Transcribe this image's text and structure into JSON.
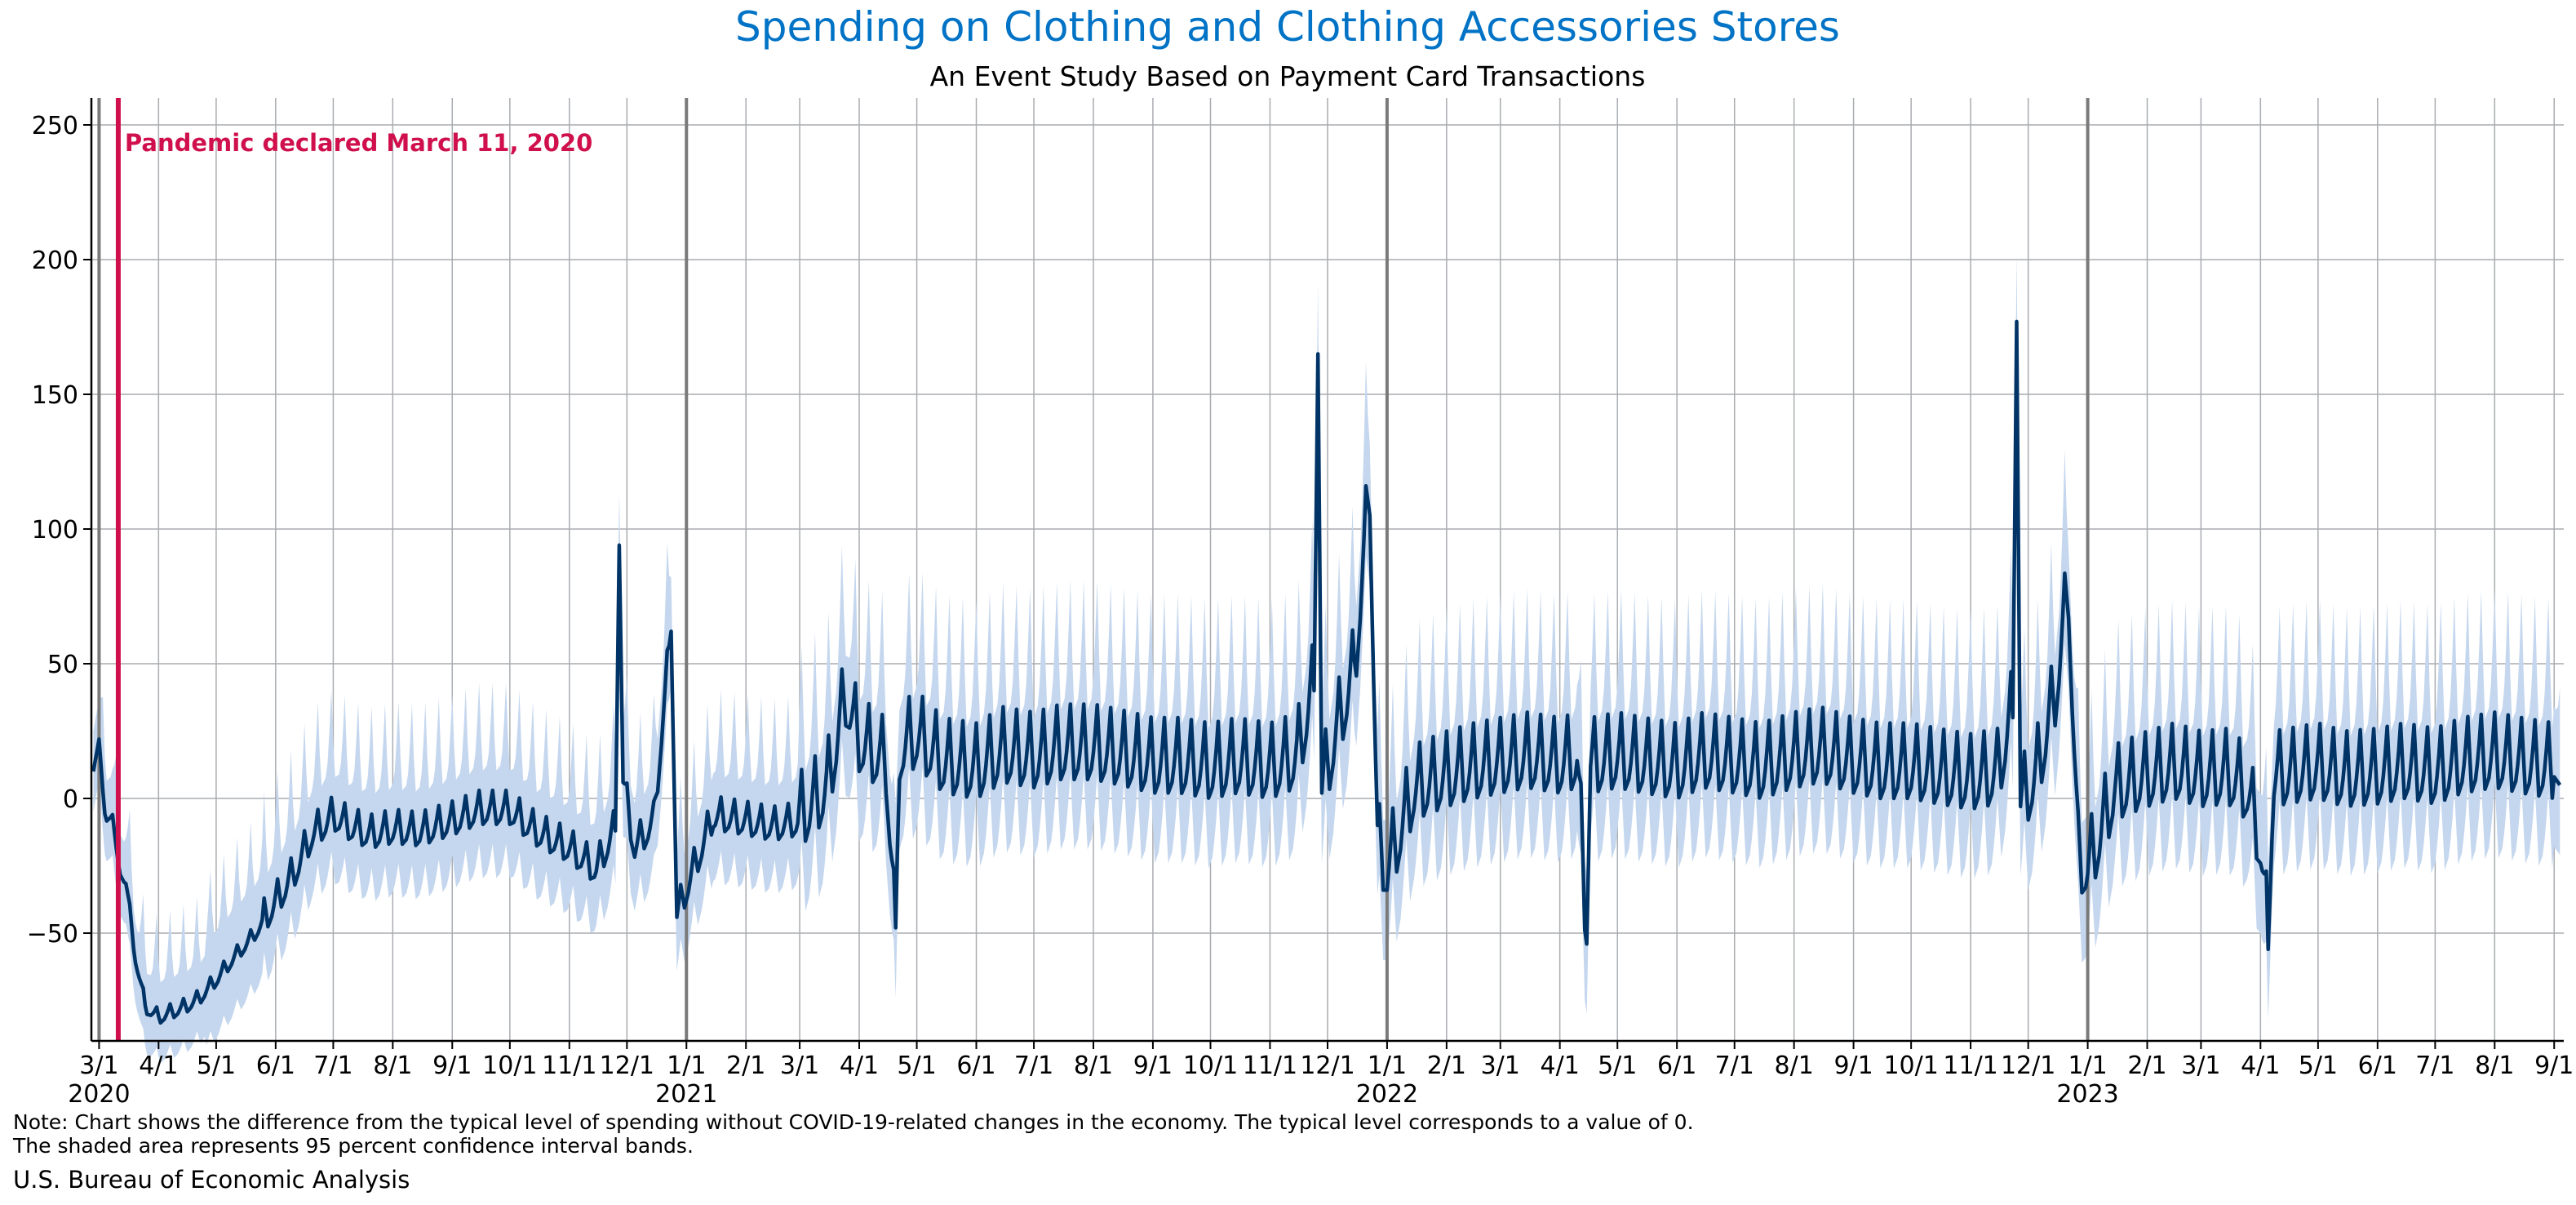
{
  "chart_data": {
    "type": "line",
    "title": "Spending on Clothing and Clothing Accessories Stores",
    "subtitle": "An Event Study Based on Payment Card Transactions",
    "xlabel": "",
    "ylabel": "",
    "ylim": [
      -90,
      260
    ],
    "yticks": [
      -50,
      0,
      50,
      100,
      150,
      200,
      250
    ],
    "xlim": [
      "2020-02-26",
      "2023-09-06"
    ],
    "grid": true,
    "colors": {
      "line": "#003366",
      "band": "#c5d7ee",
      "event": "#d0104c",
      "title": "#0073c6",
      "grid": "#a9acb0",
      "year": "#7a7a7a"
    },
    "event": {
      "date": "2020-03-11",
      "label": "Pandemic declared March 11, 2020"
    },
    "xticks": [
      {
        "date": "2020-03-01",
        "label": "3/1",
        "year": "2020"
      },
      {
        "date": "2020-04-01",
        "label": "4/1"
      },
      {
        "date": "2020-05-01",
        "label": "5/1"
      },
      {
        "date": "2020-06-01",
        "label": "6/1"
      },
      {
        "date": "2020-07-01",
        "label": "7/1"
      },
      {
        "date": "2020-08-01",
        "label": "8/1"
      },
      {
        "date": "2020-09-01",
        "label": "9/1"
      },
      {
        "date": "2020-10-01",
        "label": "10/1"
      },
      {
        "date": "2020-11-01",
        "label": "11/1"
      },
      {
        "date": "2020-12-01",
        "label": "12/1"
      },
      {
        "date": "2021-01-01",
        "label": "1/1",
        "year": "2021"
      },
      {
        "date": "2021-02-01",
        "label": "2/1"
      },
      {
        "date": "2021-03-01",
        "label": "3/1"
      },
      {
        "date": "2021-04-01",
        "label": "4/1"
      },
      {
        "date": "2021-05-01",
        "label": "5/1"
      },
      {
        "date": "2021-06-01",
        "label": "6/1"
      },
      {
        "date": "2021-07-01",
        "label": "7/1"
      },
      {
        "date": "2021-08-01",
        "label": "8/1"
      },
      {
        "date": "2021-09-01",
        "label": "9/1"
      },
      {
        "date": "2021-10-01",
        "label": "10/1"
      },
      {
        "date": "2021-11-01",
        "label": "11/1"
      },
      {
        "date": "2021-12-01",
        "label": "12/1"
      },
      {
        "date": "2022-01-01",
        "label": "1/1",
        "year": "2022"
      },
      {
        "date": "2022-02-01",
        "label": "2/1"
      },
      {
        "date": "2022-03-01",
        "label": "3/1"
      },
      {
        "date": "2022-04-01",
        "label": "4/1"
      },
      {
        "date": "2022-05-01",
        "label": "5/1"
      },
      {
        "date": "2022-06-01",
        "label": "6/1"
      },
      {
        "date": "2022-07-01",
        "label": "7/1"
      },
      {
        "date": "2022-08-01",
        "label": "8/1"
      },
      {
        "date": "2022-09-01",
        "label": "9/1"
      },
      {
        "date": "2022-10-01",
        "label": "10/1"
      },
      {
        "date": "2022-11-01",
        "label": "11/1"
      },
      {
        "date": "2022-12-01",
        "label": "12/1"
      },
      {
        "date": "2023-01-01",
        "label": "1/1",
        "year": "2023"
      },
      {
        "date": "2023-02-01",
        "label": "2/1"
      },
      {
        "date": "2023-03-01",
        "label": "3/1"
      },
      {
        "date": "2023-04-01",
        "label": "4/1"
      },
      {
        "date": "2023-05-01",
        "label": "5/1"
      },
      {
        "date": "2023-06-01",
        "label": "6/1"
      },
      {
        "date": "2023-07-01",
        "label": "7/1"
      },
      {
        "date": "2023-08-01",
        "label": "8/1"
      },
      {
        "date": "2023-09-01",
        "label": "9/1"
      }
    ],
    "series": [
      {
        "points": [
          [
            "2020-02-27",
            10
          ],
          [
            "2020-03-01",
            22
          ],
          [
            "2020-03-04",
            -7
          ],
          [
            "2020-03-08",
            -6
          ],
          [
            "2020-03-11",
            -25
          ],
          [
            "2020-03-15",
            -32
          ],
          [
            "2020-03-20",
            -60
          ],
          [
            "2020-03-25",
            -78
          ],
          [
            "2020-04-01",
            -82
          ],
          [
            "2020-04-08",
            -80
          ],
          [
            "2020-04-15",
            -78
          ],
          [
            "2020-04-22",
            -75
          ],
          [
            "2020-05-01",
            -68
          ],
          [
            "2020-05-10",
            -60
          ],
          [
            "2020-05-20",
            -52
          ],
          [
            "2020-06-01",
            -40
          ],
          [
            "2020-06-10",
            -30
          ],
          [
            "2020-06-20",
            -15
          ],
          [
            "2020-07-01",
            -8
          ],
          [
            "2020-07-10",
            -12
          ],
          [
            "2020-07-20",
            -15
          ],
          [
            "2020-08-01",
            -13
          ],
          [
            "2020-08-15",
            -14
          ],
          [
            "2020-09-01",
            -10
          ],
          [
            "2020-09-15",
            -6
          ],
          [
            "2020-10-01",
            -6
          ],
          [
            "2020-10-15",
            -14
          ],
          [
            "2020-11-01",
            -20
          ],
          [
            "2020-11-15",
            -28
          ],
          [
            "2020-11-25",
            -12
          ],
          [
            "2020-11-27",
            94
          ],
          [
            "2020-11-29",
            5
          ],
          [
            "2020-12-05",
            -20
          ],
          [
            "2020-12-15",
            -10
          ],
          [
            "2020-12-24",
            62
          ],
          [
            "2020-12-27",
            -45
          ],
          [
            "2021-01-01",
            -35
          ],
          [
            "2021-01-15",
            -8
          ],
          [
            "2021-02-01",
            -10
          ],
          [
            "2021-02-15",
            -12
          ],
          [
            "2021-03-01",
            -10
          ],
          [
            "2021-03-15",
            0
          ],
          [
            "2021-03-25",
            35
          ],
          [
            "2021-04-01",
            18
          ],
          [
            "2021-04-15",
            10
          ],
          [
            "2021-04-20",
            -48
          ],
          [
            "2021-04-22",
            15
          ],
          [
            "2021-05-01",
            20
          ],
          [
            "2021-05-15",
            10
          ],
          [
            "2021-06-01",
            8
          ],
          [
            "2021-06-15",
            14
          ],
          [
            "2021-07-01",
            12
          ],
          [
            "2021-07-15",
            15
          ],
          [
            "2021-08-01",
            15
          ],
          [
            "2021-08-15",
            13
          ],
          [
            "2021-09-01",
            10
          ],
          [
            "2021-09-15",
            10
          ],
          [
            "2021-10-01",
            8
          ],
          [
            "2021-10-15",
            10
          ],
          [
            "2021-11-01",
            8
          ],
          [
            "2021-11-15",
            12
          ],
          [
            "2021-11-24",
            40
          ],
          [
            "2021-11-26",
            165
          ],
          [
            "2021-11-28",
            0
          ],
          [
            "2021-12-05",
            20
          ],
          [
            "2021-12-15",
            45
          ],
          [
            "2021-12-23",
            113
          ],
          [
            "2021-12-27",
            -20
          ],
          [
            "2022-01-01",
            -30
          ],
          [
            "2022-01-15",
            0
          ],
          [
            "2022-02-01",
            5
          ],
          [
            "2022-02-15",
            8
          ],
          [
            "2022-03-01",
            10
          ],
          [
            "2022-03-15",
            12
          ],
          [
            "2022-04-01",
            10
          ],
          [
            "2022-04-10",
            12
          ],
          [
            "2022-04-15",
            -54
          ],
          [
            "2022-04-17",
            10
          ],
          [
            "2022-05-01",
            12
          ],
          [
            "2022-05-15",
            10
          ],
          [
            "2022-06-01",
            8
          ],
          [
            "2022-06-15",
            12
          ],
          [
            "2022-07-01",
            10
          ],
          [
            "2022-07-15",
            8
          ],
          [
            "2022-08-01",
            12
          ],
          [
            "2022-08-15",
            14
          ],
          [
            "2022-09-01",
            10
          ],
          [
            "2022-09-15",
            8
          ],
          [
            "2022-10-01",
            8
          ],
          [
            "2022-10-15",
            6
          ],
          [
            "2022-11-01",
            4
          ],
          [
            "2022-11-15",
            6
          ],
          [
            "2022-11-23",
            30
          ],
          [
            "2022-11-25",
            177
          ],
          [
            "2022-11-27",
            -5
          ],
          [
            "2022-12-05",
            5
          ],
          [
            "2022-12-15",
            35
          ],
          [
            "2022-12-22",
            75
          ],
          [
            "2022-12-27",
            -25
          ],
          [
            "2023-01-01",
            -30
          ],
          [
            "2023-01-15",
            0
          ],
          [
            "2023-02-01",
            5
          ],
          [
            "2023-02-15",
            8
          ],
          [
            "2023-03-01",
            5
          ],
          [
            "2023-03-15",
            6
          ],
          [
            "2023-03-25",
            0
          ],
          [
            "2023-04-01",
            -20
          ],
          [
            "2023-04-05",
            -56
          ],
          [
            "2023-04-08",
            5
          ],
          [
            "2023-04-15",
            6
          ],
          [
            "2023-05-01",
            8
          ],
          [
            "2023-05-15",
            5
          ],
          [
            "2023-06-01",
            6
          ],
          [
            "2023-06-15",
            8
          ],
          [
            "2023-07-01",
            6
          ],
          [
            "2023-07-15",
            10
          ],
          [
            "2023-08-01",
            12
          ],
          [
            "2023-08-15",
            10
          ],
          [
            "2023-09-01",
            8
          ],
          [
            "2023-09-04",
            5
          ]
        ]
      }
    ]
  },
  "notes": {
    "line1": "Note: Chart shows the difference from the typical level of spending without COVID-19-related changes in the economy. The typical level corresponds to a value of 0.",
    "line2": "The shaded area represents 95 percent confidence interval bands."
  },
  "source": "U.S. Bureau of Economic Analysis"
}
